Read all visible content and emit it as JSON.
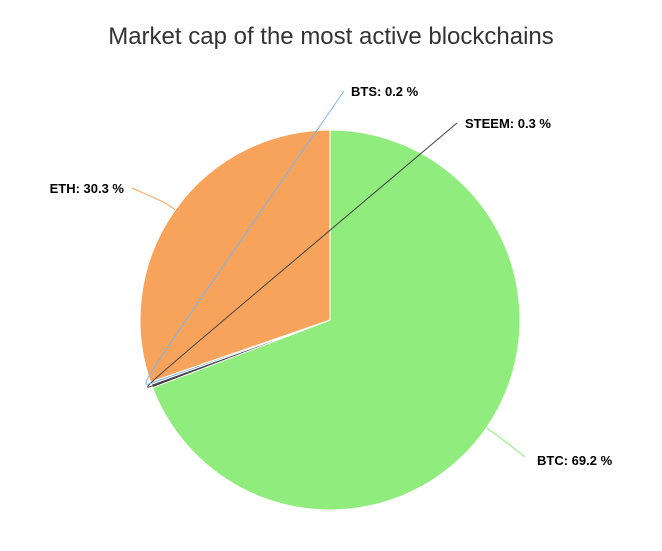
{
  "chart_data": {
    "type": "pie",
    "title": "Market cap of the most active blockchains",
    "slices": [
      {
        "name": "BTC",
        "value": 69.2,
        "label": "BTC: 69.2 %",
        "color": "#90ed7d"
      },
      {
        "name": "STEEM",
        "value": 0.3,
        "label": "STEEM: 0.3 %",
        "color": "#434348"
      },
      {
        "name": "BTS",
        "value": 0.2,
        "label": "BTS: 0.2 %",
        "color": "#7cb5ec"
      },
      {
        "name": "ETH",
        "value": 30.3,
        "label": "ETH: 30.3 %",
        "color": "#f7a35c"
      }
    ],
    "legend": "none"
  }
}
